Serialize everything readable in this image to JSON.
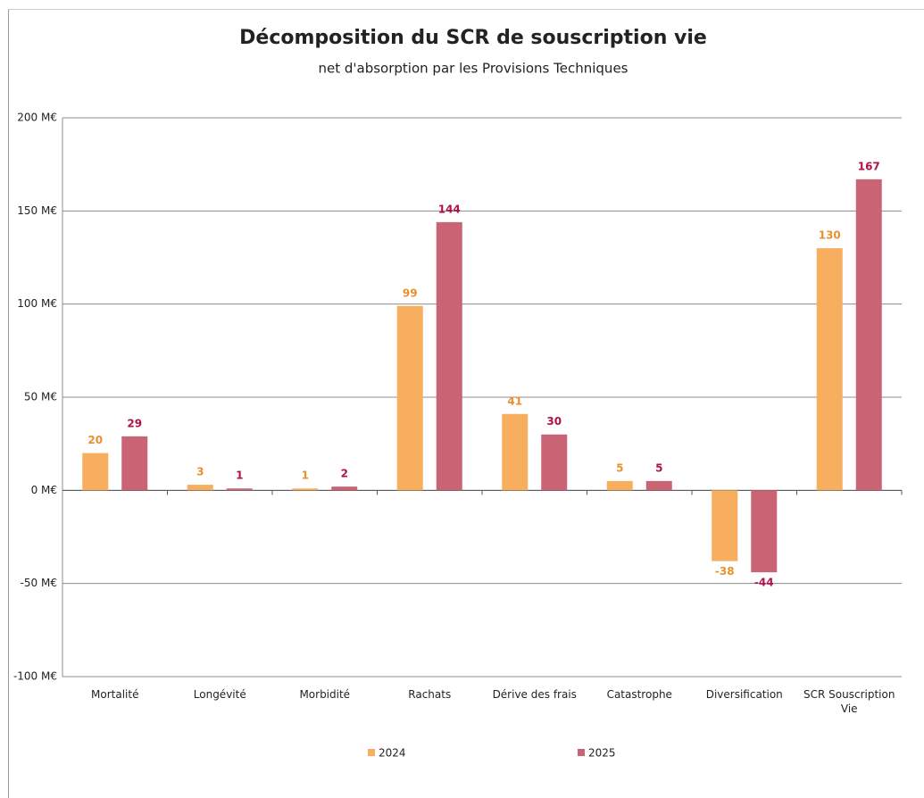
{
  "chart_data": {
    "type": "bar",
    "title": "Décomposition du SCR de souscription vie",
    "subtitle": "net d'absorption par les Provisions Techniques",
    "categories": [
      "Mortalité",
      "Longévité",
      "Morbidité",
      "Rachats",
      "Dérive des frais",
      "Catastrophe",
      "Diversification",
      "SCR Souscription Vie"
    ],
    "series": [
      {
        "name": "2024",
        "color": "#f8ae5f",
        "label_color": "#e8902e",
        "values": [
          20,
          3,
          1,
          99,
          41,
          5,
          -38,
          130
        ]
      },
      {
        "name": "2025",
        "color": "#c96474",
        "label_color": "#b0104a",
        "values": [
          29,
          1,
          2,
          144,
          30,
          5,
          -44,
          167
        ]
      }
    ],
    "ylim": [
      -100,
      200
    ],
    "yticks": [
      {
        "value": -100,
        "label": "-100 M€"
      },
      {
        "value": -50,
        "label": "-50 M€"
      },
      {
        "value": 0,
        "label": "0 M€"
      },
      {
        "value": 50,
        "label": "50 M€"
      },
      {
        "value": 100,
        "label": "100 M€"
      },
      {
        "value": 150,
        "label": "150 M€"
      },
      {
        "value": 200,
        "label": "200 M€"
      }
    ],
    "grid": true,
    "legend": "bottom"
  }
}
